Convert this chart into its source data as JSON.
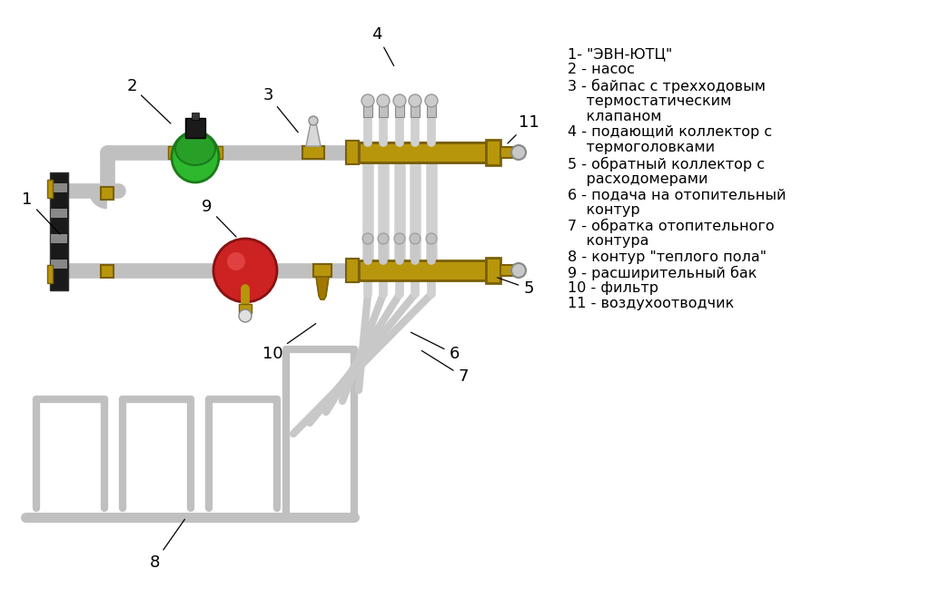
{
  "bg_color": "#ffffff",
  "pipe_color": "#c0c0c0",
  "pipe_edge": "#909090",
  "brass_color": "#b8960c",
  "brass_edge": "#7a6008",
  "green_color": "#2db82d",
  "green_edge": "#1a7a1a",
  "red_color": "#cc2222",
  "red_edge": "#881111",
  "dark_color": "#1a1a1a",
  "gray_color": "#aaaaaa",
  "legend_entries": [
    [
      "1- \"ЭВН-ЮТЦ\"",
      false
    ],
    [
      "2 - насос",
      false
    ],
    [
      "3 - байпас с трехходовым",
      false
    ],
    [
      "    термостатическим",
      false
    ],
    [
      "    клапаном",
      false
    ],
    [
      "4 - подающий коллектор с",
      false
    ],
    [
      "    термоголовками",
      false
    ],
    [
      "5 - обратный коллектор с",
      false
    ],
    [
      "    расходомерами",
      false
    ],
    [
      "6 - подача на отопительный",
      false
    ],
    [
      "    контур",
      false
    ],
    [
      "7 - обратка отопительного",
      false
    ],
    [
      "    контура",
      false
    ],
    [
      "8 - контур \"теплого пола\"",
      false
    ],
    [
      "9 - расширительный бак",
      false
    ],
    [
      "10 - фильтр",
      false
    ],
    [
      "11 - воздухоотводчик",
      false
    ]
  ],
  "font_size": 11.5,
  "num_font_size": 13
}
